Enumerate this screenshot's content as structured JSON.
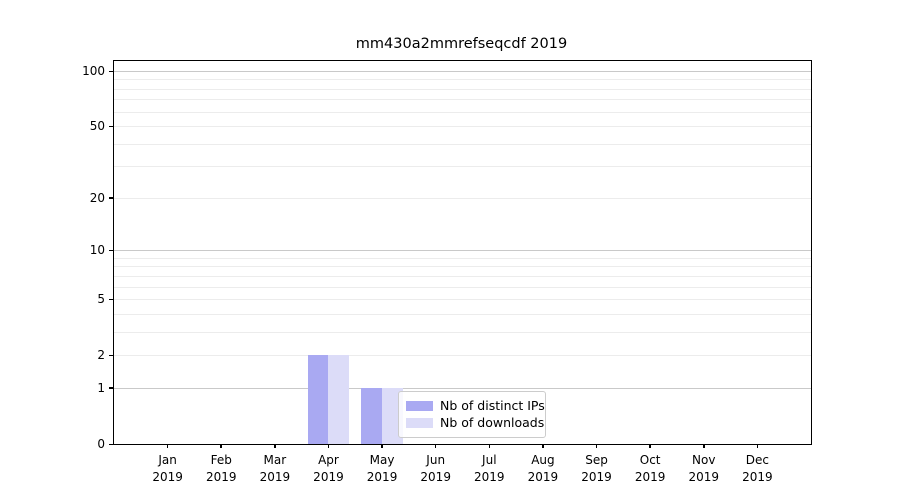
{
  "chart_data": {
    "type": "bar",
    "title": "mm430a2mmrefseqcdf 2019",
    "categories": [
      "Jan 2019",
      "Feb 2019",
      "Mar 2019",
      "Apr 2019",
      "May 2019",
      "Jun 2019",
      "Jul 2019",
      "Aug 2019",
      "Sep 2019",
      "Oct 2019",
      "Nov 2019",
      "Dec 2019"
    ],
    "series": [
      {
        "name": "Nb of distinct IPs",
        "color": "#a9a9f2",
        "values": [
          0,
          0,
          0,
          2,
          1,
          0,
          0,
          0,
          0,
          0,
          0,
          0
        ]
      },
      {
        "name": "Nb of downloads",
        "color": "#dcdcf8",
        "values": [
          0,
          0,
          0,
          2,
          1,
          0,
          0,
          0,
          0,
          0,
          0,
          0
        ]
      }
    ],
    "yscale": "log1p",
    "y_tick_values": [
      0,
      1,
      2,
      5,
      10,
      20,
      50,
      100
    ],
    "y_tick_labels": [
      "0",
      "1",
      "2",
      "5",
      "10",
      "20",
      "50",
      "100"
    ],
    "y_major_gridlines": [
      1,
      10,
      100
    ],
    "y_minor_gridlines": [
      2,
      3,
      4,
      5,
      6,
      7,
      8,
      9,
      20,
      30,
      40,
      50,
      60,
      70,
      80,
      90
    ],
    "ylim_top_value": 113,
    "grid": "on",
    "legend_position": "inside-lower-middle",
    "xlabel": "",
    "ylabel": ""
  }
}
